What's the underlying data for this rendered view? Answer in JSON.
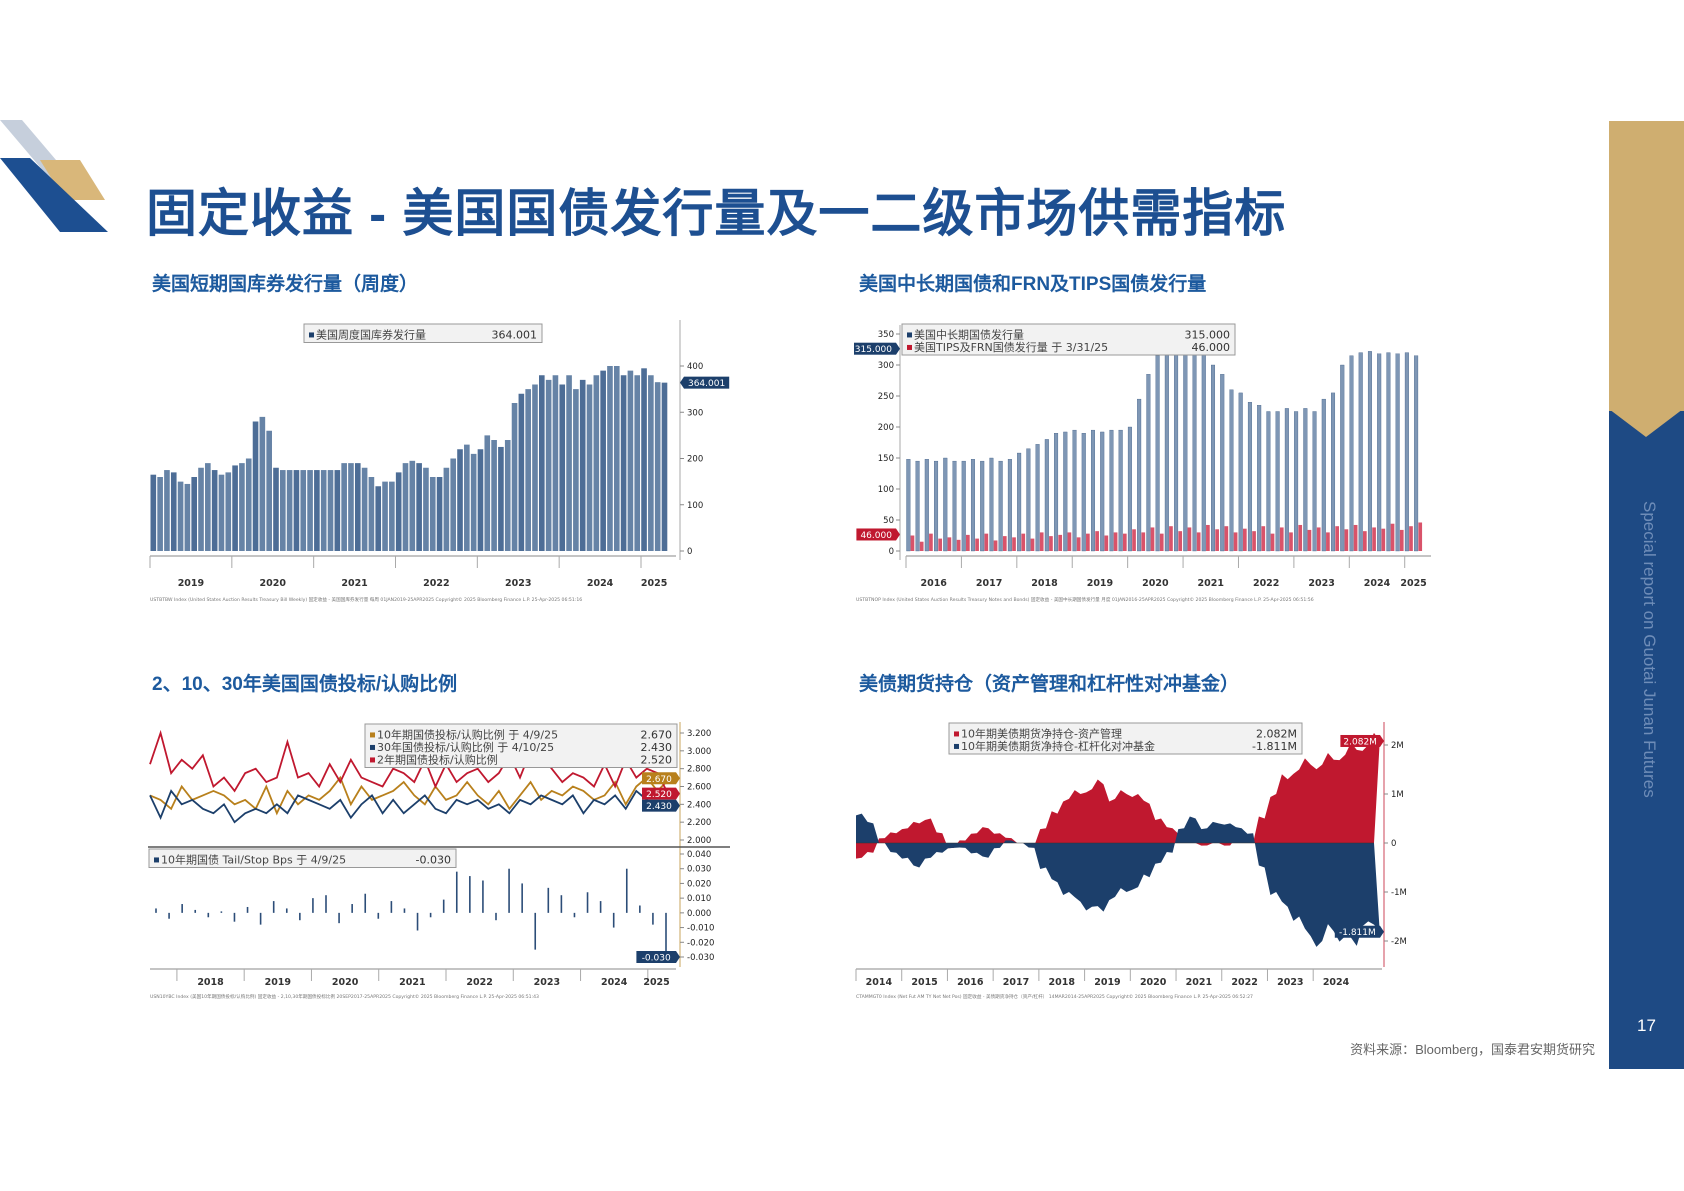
{
  "title": "固定收益 - 美国国债发行量及一二级市场供需指标",
  "sidebar": {
    "text": "Special report on Guotai Junan Futures",
    "page_number": "17"
  },
  "source": "资料来源：Bloomberg，国泰君安期货研究",
  "colors": {
    "brand_blue": "#1d4f91",
    "gold": "#cfae70",
    "navy": "#1c3f6b",
    "red": "#c0182f",
    "amber": "#b8801c"
  },
  "sections": [
    {
      "heading": "美国短期国库券发行量（周度）"
    },
    {
      "heading": "美国中长期国债和FRN及TIPS国债发行量"
    },
    {
      "heading": "2、10、30年美国国债投标/认购比例"
    },
    {
      "heading": "美债期货持仓（资产管理和杠杆性对冲基金）"
    }
  ],
  "chart_data": [
    {
      "type": "bar",
      "title": "美国短期国库券发行量（周度）",
      "legend": [
        {
          "label": "美国周度国库券发行量",
          "value": "364.001",
          "color": "#1c3f6b"
        }
      ],
      "x_domain": [
        2019,
        2025.33
      ],
      "x_tick_labels": [
        "2019",
        "2020",
        "2021",
        "2022",
        "2023",
        "2024",
        "2025"
      ],
      "y_ticks": [
        0,
        100,
        200,
        300,
        400
      ],
      "ylim": [
        0,
        450
      ],
      "y_axis": "right",
      "last_value_tag": {
        "value": 364.001,
        "label": "364.001",
        "color": "#1c3f6b"
      },
      "series": [
        {
          "name": "美国周度国库券发行量",
          "color": "#6683a6",
          "values": [
            165,
            160,
            175,
            170,
            150,
            145,
            160,
            180,
            190,
            175,
            165,
            170,
            185,
            190,
            200,
            280,
            290,
            260,
            180,
            175,
            175,
            175,
            175,
            175,
            175,
            175,
            175,
            175,
            190,
            190,
            190,
            180,
            160,
            140,
            150,
            150,
            170,
            190,
            195,
            190,
            180,
            160,
            160,
            180,
            200,
            220,
            230,
            210,
            220,
            250,
            240,
            225,
            240,
            320,
            340,
            350,
            360,
            380,
            370,
            380,
            360,
            380,
            350,
            370,
            360,
            380,
            390,
            400,
            400,
            380,
            390,
            380,
            395,
            380,
            365,
            364
          ]
        }
      ],
      "footnote": "USTBTBW Index (United States Auction Results Treasury Bill Weekly) 固定收益 - 美国国库券发行量 每周 01JAN2019-25APR2025        Copyright© 2025 Bloomberg Finance L.P.        25-Apr-2025 06:51:16"
    },
    {
      "type": "bar",
      "title": "美国中长期国债和FRN及TIPS国债发行量",
      "legend": [
        {
          "label": "美国中长期国债发行量",
          "value": "315.000",
          "color": "#1c3f6b"
        },
        {
          "label": "美国TIPS及FRN国债发行量 于 3/31/25",
          "value": "46.000",
          "color": "#c0182f"
        }
      ],
      "x_domain": [
        2016,
        2025.33
      ],
      "x_tick_labels": [
        "2016",
        "2017",
        "2018",
        "2019",
        "2020",
        "2021",
        "2022",
        "2023",
        "2024",
        "2025"
      ],
      "y_ticks": [
        0,
        50,
        100,
        150,
        200,
        250,
        300,
        350
      ],
      "ylim": [
        0,
        350
      ],
      "y_axis": "left",
      "last_value_tags": [
        {
          "value": 315,
          "label": "315.000",
          "color": "#1c3f6b"
        },
        {
          "value": 46,
          "label": "46.000",
          "color": "#c0182f"
        }
      ],
      "series": [
        {
          "name": "美国中长期国债发行量",
          "color": "#7f97b5",
          "values": [
            148,
            145,
            148,
            145,
            150,
            145,
            145,
            148,
            145,
            150,
            145,
            148,
            158,
            165,
            172,
            180,
            190,
            192,
            195,
            190,
            195,
            192,
            195,
            195,
            200,
            245,
            285,
            315,
            325,
            328,
            330,
            325,
            320,
            300,
            285,
            260,
            255,
            240,
            235,
            225,
            225,
            230,
            225,
            230,
            225,
            245,
            255,
            300,
            315,
            320,
            322,
            318,
            320,
            318,
            320,
            315
          ]
        },
        {
          "name": "美国TIPS及FRN国债发行量",
          "color": "#d9536a",
          "values": [
            25,
            15,
            28,
            20,
            22,
            18,
            26,
            20,
            28,
            17,
            24,
            22,
            28,
            20,
            30,
            24,
            26,
            30,
            22,
            28,
            32,
            25,
            30,
            28,
            35,
            30,
            38,
            28,
            40,
            32,
            38,
            30,
            42,
            35,
            40,
            30,
            36,
            32,
            40,
            28,
            38,
            30,
            42,
            34,
            38,
            30,
            40,
            35,
            42,
            32,
            38,
            36,
            44,
            34,
            40,
            46
          ]
        }
      ],
      "footnote": "USTBTNOP Index (United States Auction Results Treasury Notes and Bonds) 固定收益 - 美国中长期国债发行量 月度 01JAN2016-25APR2025      Copyright© 2025 Bloomberg Finance L.P.      25-Apr-2025 06:51:56"
    },
    {
      "type": "line",
      "title": "2、10、30年美国国债投标/认购比例",
      "legend": [
        {
          "label": "10年期国债投标/认购比例 于 4/9/25",
          "value": "2.670",
          "color": "#b8801c"
        },
        {
          "label": "30年国债投标/认购比例 于 4/10/25",
          "value": "2.430",
          "color": "#1c3f6b"
        },
        {
          "label": "2年期国债投标/认购比例",
          "value": "2.520",
          "color": "#c0182f"
        }
      ],
      "x_domain": [
        2017.6,
        2025.3
      ],
      "x_tick_labels": [
        "2018",
        "2019",
        "2020",
        "2021",
        "2022",
        "2023",
        "2024",
        "2025"
      ],
      "y_ticks": [
        2.0,
        2.2,
        2.4,
        2.6,
        2.8,
        3.0,
        3.2
      ],
      "y_tick_labels": [
        "2.000",
        "2.200",
        "2.400",
        "2.600",
        "2.800",
        "3.000",
        "3.200"
      ],
      "ylim": [
        2.0,
        3.2
      ],
      "y_axis": "right",
      "series": [
        {
          "name": "10年期国债投标/认购比例",
          "color": "#b8801c",
          "values": [
            2.5,
            2.45,
            2.35,
            2.6,
            2.45,
            2.5,
            2.55,
            2.5,
            2.4,
            2.45,
            2.35,
            2.6,
            2.3,
            2.55,
            2.4,
            2.5,
            2.45,
            2.55,
            2.7,
            2.4,
            2.6,
            2.45,
            2.5,
            2.55,
            2.65,
            2.5,
            2.4,
            2.6,
            2.45,
            2.5,
            2.65,
            2.5,
            2.4,
            2.55,
            2.35,
            2.5,
            2.65,
            2.45,
            2.55,
            2.5,
            2.6,
            2.55,
            2.45,
            2.5,
            2.65,
            2.4,
            2.6,
            2.7,
            2.55,
            2.67
          ]
        },
        {
          "name": "30年国债投标/认购比例",
          "color": "#1c3f6b",
          "values": [
            2.5,
            2.25,
            2.55,
            2.4,
            2.45,
            2.35,
            2.3,
            2.4,
            2.2,
            2.3,
            2.35,
            2.3,
            2.4,
            2.3,
            2.5,
            2.45,
            2.4,
            2.35,
            2.45,
            2.25,
            2.4,
            2.5,
            2.3,
            2.45,
            2.3,
            2.4,
            2.5,
            2.35,
            2.3,
            2.45,
            2.4,
            2.45,
            2.35,
            2.4,
            2.3,
            2.45,
            2.4,
            2.5,
            2.45,
            2.4,
            2.5,
            2.3,
            2.45,
            2.4,
            2.5,
            2.35,
            2.55,
            2.45,
            2.35,
            2.43
          ]
        },
        {
          "name": "2年期国债投标/认购比例",
          "color": "#c0182f",
          "values": [
            2.85,
            3.2,
            2.75,
            2.9,
            2.8,
            2.95,
            2.6,
            2.7,
            2.55,
            2.75,
            2.8,
            2.65,
            2.7,
            3.1,
            2.7,
            2.75,
            2.6,
            2.85,
            2.65,
            2.9,
            2.7,
            2.65,
            2.6,
            2.8,
            2.75,
            2.65,
            2.9,
            2.6,
            2.85,
            2.65,
            2.75,
            2.8,
            2.65,
            2.75,
            2.95,
            2.7,
            3.0,
            2.95,
            2.8,
            2.65,
            2.75,
            2.7,
            2.6,
            2.85,
            2.6,
            2.9,
            2.7,
            2.8,
            2.75,
            2.52
          ]
        }
      ],
      "last_value_tags": [
        {
          "value": 2.67,
          "label": "2.670",
          "color": "#b8801c"
        },
        {
          "value": 2.52,
          "label": "2.520",
          "color": "#c0182f"
        },
        {
          "value": 2.43,
          "label": "2.430",
          "color": "#1c3f6b"
        }
      ],
      "sub_panel": {
        "type": "bar",
        "legend": [
          {
            "label": "10年期国债 Tail/Stop Bps 于 4/9/25",
            "value": "-0.030",
            "color": "#1c3f6b"
          }
        ],
        "y_ticks": [
          -0.03,
          -0.02,
          -0.01,
          0,
          0.01,
          0.02,
          0.03,
          0.04
        ],
        "y_tick_labels": [
          "-0.030",
          "-0.020",
          "-0.010",
          "0.000",
          "0.010",
          "0.020",
          "0.030",
          "0.040"
        ],
        "ylim": [
          -0.03,
          0.04
        ],
        "last_value_tag": {
          "value": -0.03,
          "label": "-0.030",
          "color": "#1c3f6b"
        },
        "values": [
          0.003,
          -0.004,
          0.006,
          0.002,
          -0.003,
          0.001,
          -0.006,
          0.004,
          -0.008,
          0.008,
          0.003,
          -0.005,
          0.01,
          0.012,
          -0.007,
          0.006,
          0.013,
          -0.004,
          0.008,
          0.003,
          -0.012,
          -0.003,
          0.009,
          0.028,
          0.025,
          0.022,
          -0.005,
          0.03,
          0.02,
          -0.025,
          0.017,
          0.012,
          -0.003,
          0.014,
          0.008,
          -0.01,
          0.03,
          0.005,
          -0.008,
          -0.03
        ]
      },
      "footnote": "USN10YBC Index (美国10年期国债投标/认购比例) 固定收益 - 2,10,30年期国债投标比例 20SEP2017-25APR2025      Copyright© 2025 Bloomberg Finance L.P.      25-Apr-2025 06:51:43"
    },
    {
      "type": "area",
      "title": "美债期货持仓（资产管理和杠杆性对冲基金）",
      "legend": [
        {
          "label": "10年期美债期货净持仓-资产管理",
          "value": "2.082M",
          "color": "#c0182f"
        },
        {
          "label": "10年期美债期货净持仓-杠杆化对冲基金",
          "value": "-1.811M",
          "color": "#1c3f6b"
        }
      ],
      "x_domain": [
        2014,
        2025.33
      ],
      "x_tick_labels": [
        "2014",
        "2015",
        "2016",
        "2017",
        "2018",
        "2019",
        "2020",
        "2021",
        "2022",
        "2023",
        "2024"
      ],
      "y_ticks": [
        -2,
        -1,
        0,
        1,
        2
      ],
      "y_tick_labels": [
        "-2M",
        "-1M",
        "0",
        "1M",
        "2M"
      ],
      "ylim": [
        -2.2,
        2.2
      ],
      "y_unit": "M contracts",
      "y_axis": "right",
      "series": [
        {
          "name": "10年期美债期货净持仓-资产管理",
          "color": "#c0182f",
          "values": [
            -0.3,
            -0.2,
            0.1,
            0.2,
            0.3,
            0.4,
            0.5,
            0.2,
            -0.1,
            0.05,
            0.2,
            0.3,
            0.2,
            0.1,
            0.0,
            -0.05,
            0.3,
            0.6,
            0.9,
            1.0,
            1.1,
            1.2,
            0.9,
            1.0,
            1.0,
            0.8,
            0.5,
            0.3,
            0.2,
            0.0,
            -0.05,
            0.0,
            -0.05,
            0.1,
            0.0,
            0.5,
            1.0,
            1.3,
            1.5,
            1.6,
            1.6,
            1.7,
            1.8,
            1.9,
            2.0,
            2.082
          ]
        },
        {
          "name": "10年期美债期货净持仓-杠杆化对冲基金",
          "color": "#1c3f6b",
          "values": [
            0.6,
            0.4,
            0.0,
            -0.2,
            -0.3,
            -0.5,
            -0.3,
            -0.2,
            -0.1,
            -0.1,
            -0.2,
            -0.3,
            -0.1,
            0.05,
            0.0,
            -0.1,
            -0.5,
            -0.8,
            -1.0,
            -1.2,
            -1.3,
            -1.4,
            -1.1,
            -1.0,
            -0.9,
            -0.7,
            -0.4,
            -0.2,
            0.3,
            0.5,
            0.3,
            0.4,
            0.4,
            0.3,
            0.2,
            -0.5,
            -1.0,
            -1.3,
            -1.5,
            -1.9,
            -2.0,
            -1.8,
            -1.9,
            -2.1,
            -1.6,
            -1.811
          ]
        }
      ],
      "last_value_tags": [
        {
          "value": 2.082,
          "label": "2.082M",
          "color": "#c0182f"
        },
        {
          "value": -1.811,
          "label": "-1.811M",
          "color": "#1c3f6b"
        }
      ],
      "footnote": "CTAMMGT0 Index (Net Fut AM TY Net Net Pos) 固定收益 - 美债期货净持仓（资产/杠杆） 14MAR2014-25APR2025      Copyright© 2025 Bloomberg Finance L.P.      25-Apr-2025 06:52:27"
    }
  ]
}
